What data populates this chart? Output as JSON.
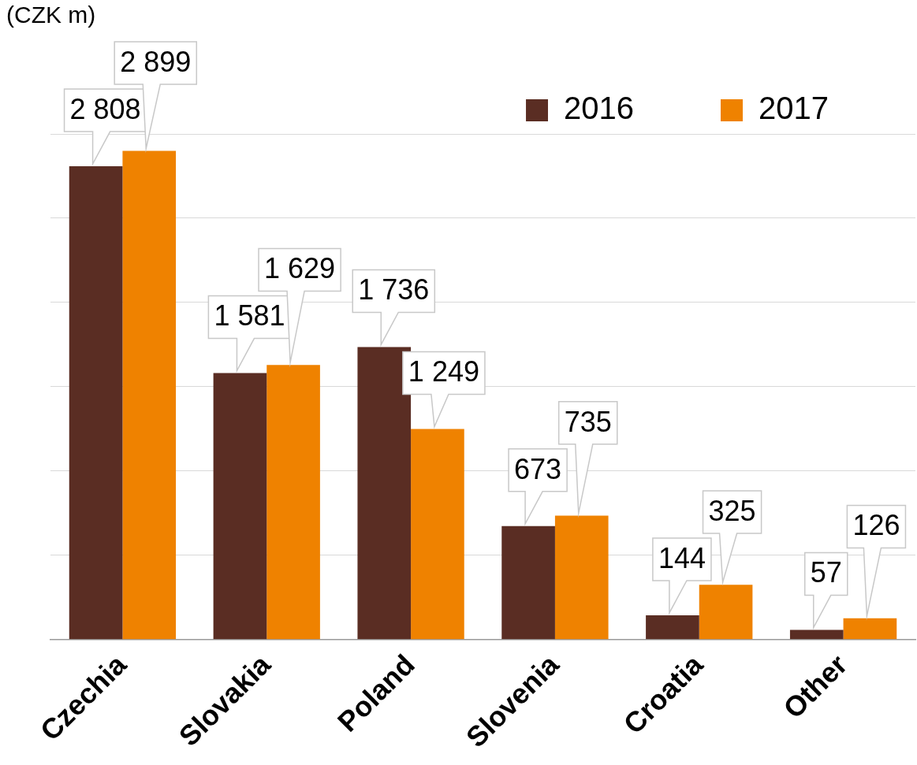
{
  "chart_data": {
    "type": "bar",
    "ylabel": "(CZK m)",
    "categories": [
      "Czechia",
      "Slovakia",
      "Poland",
      "Slovenia",
      "Croatia",
      "Other"
    ],
    "series": [
      {
        "name": "2016",
        "color": "#5a2d23",
        "values": [
          2808,
          1581,
          1736,
          673,
          144,
          57
        ],
        "value_labels": [
          "2 808",
          "1 581",
          "1 736",
          "673",
          "144",
          "57"
        ]
      },
      {
        "name": "2017",
        "color": "#ef8200",
        "values": [
          2899,
          1629,
          1249,
          735,
          325,
          126
        ],
        "value_labels": [
          "2 899",
          "1 629",
          "1 249",
          "735",
          "325",
          "126"
        ]
      }
    ],
    "ylim": [
      0,
      3000
    ],
    "yticks": [
      {
        "value": 0,
        "label": null
      },
      {
        "value": 500,
        "label": null
      },
      {
        "value": 1000,
        "label": null
      },
      {
        "value": 1500,
        "label": null
      },
      {
        "value": 2000,
        "label": null
      },
      {
        "value": 2500,
        "label": null
      },
      {
        "value": 3000,
        "label": null
      }
    ],
    "grid": "y",
    "legend": "top right"
  }
}
